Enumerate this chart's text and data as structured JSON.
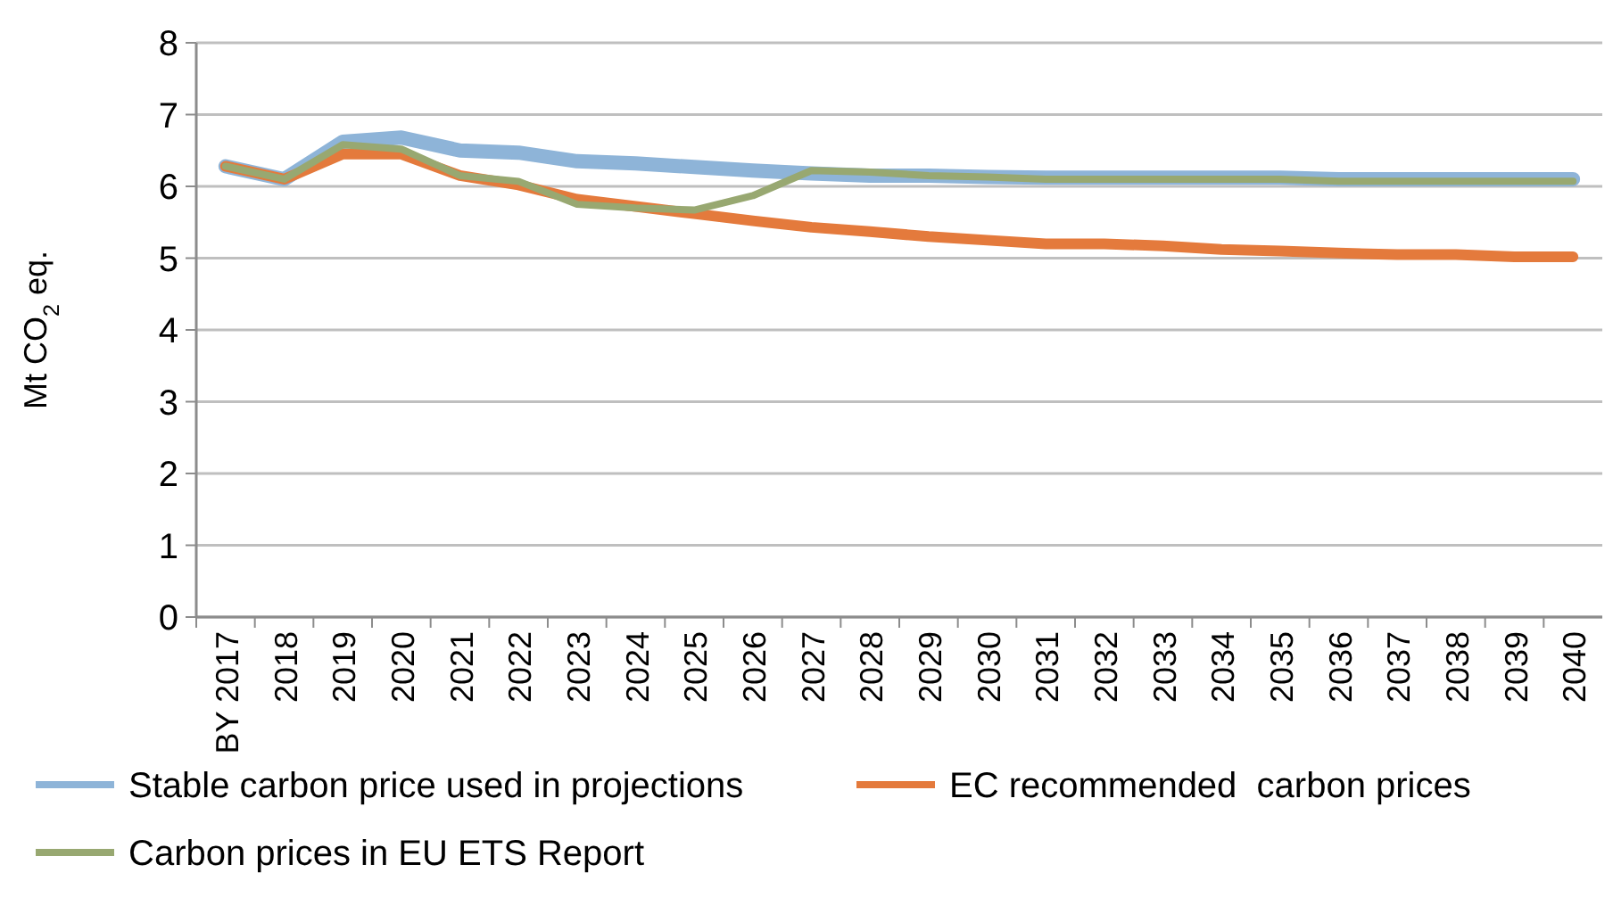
{
  "chart_data": {
    "type": "line",
    "ylabel": "Mt CO$_{2}$ eq.",
    "categories": [
      "BY 2017",
      "2018",
      "2019",
      "2020",
      "2021",
      "2022",
      "2023",
      "2024",
      "2025",
      "2026",
      "2027",
      "2028",
      "2029",
      "2030",
      "2031",
      "2032",
      "2033",
      "2034",
      "2035",
      "2036",
      "2037",
      "2038",
      "2039",
      "2040"
    ],
    "series": [
      {
        "name": "Stable carbon price used in projections",
        "color": "#8eb4d8",
        "values": [
          6.28,
          6.1,
          6.62,
          6.68,
          6.5,
          6.47,
          6.35,
          6.32,
          6.27,
          6.22,
          6.18,
          6.15,
          6.15,
          6.13,
          6.12,
          6.12,
          6.12,
          6.12,
          6.12,
          6.1,
          6.1,
          6.1,
          6.1,
          6.1
        ]
      },
      {
        "name": "EC recommended  carbon prices",
        "color": "#e47a3c",
        "values": [
          6.28,
          6.1,
          6.45,
          6.45,
          6.15,
          6.02,
          5.82,
          5.72,
          5.62,
          5.52,
          5.43,
          5.37,
          5.3,
          5.25,
          5.2,
          5.2,
          5.17,
          5.12,
          5.1,
          5.07,
          5.05,
          5.05,
          5.02,
          5.02
        ]
      },
      {
        "name": "Carbon prices in EU ETS Report",
        "color": "#98a871",
        "values": [
          6.28,
          6.1,
          6.58,
          6.52,
          6.15,
          6.07,
          5.75,
          5.7,
          5.67,
          5.87,
          6.22,
          6.2,
          6.15,
          6.13,
          6.1,
          6.1,
          6.1,
          6.1,
          6.1,
          6.07,
          6.07,
          6.07,
          6.07,
          6.07
        ]
      }
    ],
    "ylim": [
      0,
      8
    ],
    "yticks": [
      0,
      1,
      2,
      3,
      4,
      5,
      6,
      7,
      8
    ],
    "grid": "y",
    "legend": "bottom",
    "marker": "none",
    "line_style": "solid"
  }
}
